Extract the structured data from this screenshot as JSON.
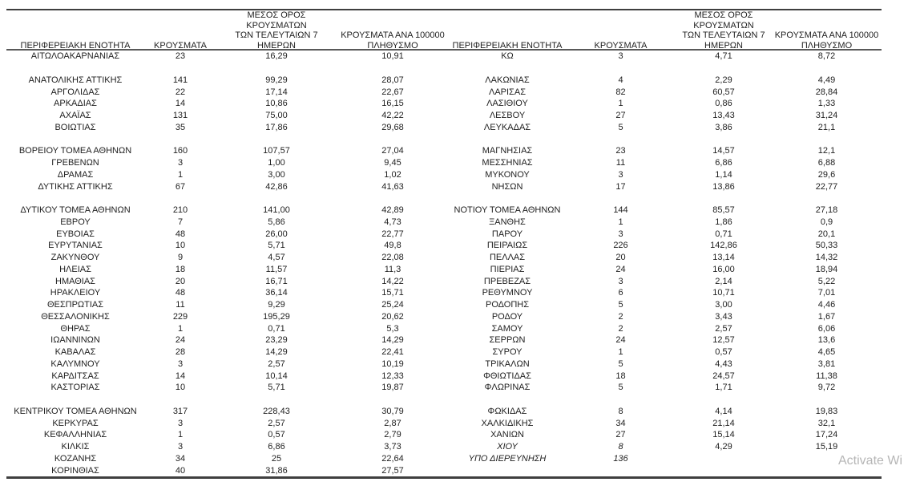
{
  "headers": {
    "region": "ΠΕΡΙΦΕΡΕΙΑΚΗ ΕΝΟΤΗΤΑ",
    "cases": "ΚΡΟΥΣΜΑΤΑ",
    "avg7": "ΜΕΣΟΣ ΟΡΟΣ ΚΡΟΥΣΜΑΤΩΝ\nΤΩΝ ΤΕΛΕΥΤΑΙΩΝ 7\nΗΜΕΡΩΝ",
    "per100k": "ΚΡΟΥΣΜΑΤΑ ΑΝΑ 100000\nΠΛΗΘΥΣΜΟ"
  },
  "colors": {
    "text": "#1f1f1f",
    "rule_dark": "#3f3f3f",
    "rule_mid": "#595959",
    "watermark": "#b6b6b6"
  },
  "watermark": "Activate Wi",
  "rows": [
    {
      "l": [
        "ΑΙΤΩΛΟΑΚΑΡΝΑΝΙΑΣ",
        "23",
        "16,29",
        "10,91"
      ],
      "r": [
        "ΚΩ",
        "3",
        "4,71",
        "8,72"
      ]
    },
    {
      "spacer": true
    },
    {
      "l": [
        "ΑΝΑΤΟΛΙΚΗΣ ΑΤΤΙΚΗΣ",
        "141",
        "99,29",
        "28,07"
      ],
      "r": [
        "ΛΑΚΩΝΙΑΣ",
        "4",
        "2,29",
        "4,49"
      ]
    },
    {
      "l": [
        "ΑΡΓΟΛΙΔΑΣ",
        "22",
        "17,14",
        "22,67"
      ],
      "r": [
        "ΛΑΡΙΣΑΣ",
        "82",
        "60,57",
        "28,84"
      ]
    },
    {
      "l": [
        "ΑΡΚΑΔΙΑΣ",
        "14",
        "10,86",
        "16,15"
      ],
      "r": [
        "ΛΑΣΙΘΙΟΥ",
        "1",
        "0,86",
        "1,33"
      ]
    },
    {
      "l": [
        "ΑΧΑΪΑΣ",
        "131",
        "75,00",
        "42,22"
      ],
      "r": [
        "ΛΕΣΒΟΥ",
        "27",
        "13,43",
        "31,24"
      ]
    },
    {
      "l": [
        "ΒΟΙΩΤΙΑΣ",
        "35",
        "17,86",
        "29,68"
      ],
      "r": [
        "ΛΕΥΚΑΔΑΣ",
        "5",
        "3,86",
        "21,1"
      ]
    },
    {
      "spacer": true
    },
    {
      "l": [
        "ΒΟΡΕΙΟΥ ΤΟΜΕΑ ΑΘΗΝΩΝ",
        "160",
        "107,57",
        "27,04"
      ],
      "r": [
        "ΜΑΓΝΗΣΙΑΣ",
        "23",
        "14,57",
        "12,1"
      ]
    },
    {
      "l": [
        "ΓΡΕΒΕΝΩΝ",
        "3",
        "1,00",
        "9,45"
      ],
      "r": [
        "ΜΕΣΣΗΝΙΑΣ",
        "11",
        "6,86",
        "6,88"
      ]
    },
    {
      "l": [
        "ΔΡΑΜΑΣ",
        "1",
        "3,00",
        "1,02"
      ],
      "r": [
        "ΜΥΚΟΝΟΥ",
        "3",
        "1,14",
        "29,6"
      ]
    },
    {
      "l": [
        "ΔΥΤΙΚΗΣ ΑΤΤΙΚΗΣ",
        "67",
        "42,86",
        "41,63"
      ],
      "r": [
        "ΝΗΣΩΝ",
        "17",
        "13,86",
        "22,77"
      ]
    },
    {
      "spacer": true
    },
    {
      "l": [
        "ΔΥΤΙΚΟΥ ΤΟΜΕΑ ΑΘΗΝΩΝ",
        "210",
        "141,00",
        "42,89"
      ],
      "r": [
        "ΝΟΤΙΟΥ ΤΟΜΕΑ ΑΘΗΝΩΝ",
        "144",
        "85,57",
        "27,18"
      ]
    },
    {
      "l": [
        "ΕΒΡΟΥ",
        "7",
        "5,86",
        "4,73"
      ],
      "r": [
        "ΞΑΝΘΗΣ",
        "1",
        "1,86",
        "0,9"
      ]
    },
    {
      "l": [
        "ΕΥΒΟΙΑΣ",
        "48",
        "26,00",
        "22,77"
      ],
      "r": [
        "ΠΑΡΟΥ",
        "3",
        "0,71",
        "20,1"
      ]
    },
    {
      "l": [
        "ΕΥΡΥΤΑΝΙΑΣ",
        "10",
        "5,71",
        "49,8"
      ],
      "r": [
        "ΠΕΙΡΑΙΩΣ",
        "226",
        "142,86",
        "50,33"
      ]
    },
    {
      "l": [
        "ΖΑΚΥΝΘΟΥ",
        "9",
        "4,57",
        "22,08"
      ],
      "r": [
        "ΠΕΛΛΑΣ",
        "20",
        "13,14",
        "14,32"
      ]
    },
    {
      "l": [
        "ΗΛΕΙΑΣ",
        "18",
        "11,57",
        "11,3"
      ],
      "r": [
        "ΠΙΕΡΙΑΣ",
        "24",
        "16,00",
        "18,94"
      ]
    },
    {
      "l": [
        "ΗΜΑΘΙΑΣ",
        "20",
        "16,71",
        "14,22"
      ],
      "r": [
        "ΠΡΕΒΕΖΑΣ",
        "3",
        "2,14",
        "5,22"
      ]
    },
    {
      "l": [
        "ΗΡΑΚΛΕΙΟΥ",
        "48",
        "36,14",
        "15,71"
      ],
      "r": [
        "ΡΕΘΥΜΝΟΥ",
        "6",
        "10,71",
        "7,01"
      ]
    },
    {
      "l": [
        "ΘΕΣΠΡΩΤΙΑΣ",
        "11",
        "9,29",
        "25,24"
      ],
      "r": [
        "ΡΟΔΟΠΗΣ",
        "5",
        "3,00",
        "4,46"
      ]
    },
    {
      "l": [
        "ΘΕΣΣΑΛΟΝΙΚΗΣ",
        "229",
        "195,29",
        "20,62"
      ],
      "r": [
        "ΡΟΔΟΥ",
        "2",
        "3,43",
        "1,67"
      ]
    },
    {
      "l": [
        "ΘΗΡΑΣ",
        "1",
        "0,71",
        "5,3"
      ],
      "r": [
        "ΣΑΜΟΥ",
        "2",
        "2,57",
        "6,06"
      ]
    },
    {
      "l": [
        "ΙΩΑΝΝΙΝΩΝ",
        "24",
        "23,29",
        "14,29"
      ],
      "r": [
        "ΣΕΡΡΩΝ",
        "24",
        "12,57",
        "13,6"
      ]
    },
    {
      "l": [
        "ΚΑΒΑΛΑΣ",
        "28",
        "14,29",
        "22,41"
      ],
      "r": [
        "ΣΥΡΟΥ",
        "1",
        "0,57",
        "4,65"
      ]
    },
    {
      "l": [
        "ΚΑΛΥΜΝΟΥ",
        "3",
        "2,57",
        "10,19"
      ],
      "r": [
        "ΤΡΙΚΑΛΩΝ",
        "5",
        "4,43",
        "3,81"
      ]
    },
    {
      "l": [
        "ΚΑΡΔΙΤΣΑΣ",
        "14",
        "10,14",
        "12,33"
      ],
      "r": [
        "ΦΘΙΩΤΙΔΑΣ",
        "18",
        "24,57",
        "11,38"
      ]
    },
    {
      "l": [
        "ΚΑΣΤΟΡΙΑΣ",
        "10",
        "5,71",
        "19,87"
      ],
      "r": [
        "ΦΛΩΡΙΝΑΣ",
        "5",
        "1,71",
        "9,72"
      ]
    },
    {
      "spacer": true
    },
    {
      "l": [
        "ΚΕΝΤΡΙΚΟΥ ΤΟΜΕΑ ΑΘΗΝΩΝ",
        "317",
        "228,43",
        "30,79"
      ],
      "r": [
        "ΦΩΚΙΔΑΣ",
        "8",
        "4,14",
        "19,83"
      ]
    },
    {
      "l": [
        "ΚΕΡΚΥΡΑΣ",
        "3",
        "2,57",
        "2,87"
      ],
      "r": [
        "ΧΑΛΚΙΔΙΚΗΣ",
        "34",
        "21,14",
        "32,1"
      ]
    },
    {
      "l": [
        "ΚΕΦΑΛΛΗΝΙΑΣ",
        "1",
        "0,57",
        "2,79"
      ],
      "r": [
        "ΧΑΝΙΩΝ",
        "27",
        "15,14",
        "17,24"
      ]
    },
    {
      "l": [
        "ΚΙΛΚΙΣ",
        "3",
        "6,86",
        "3,73"
      ],
      "r": [
        "ΧΙΟΥ",
        "8",
        "4,29",
        "15,19"
      ],
      "ri": [
        true,
        true,
        false,
        false
      ]
    },
    {
      "l": [
        "ΚΟΖΑΝΗΣ",
        "34",
        "25",
        "22,64"
      ],
      "r": [
        "ΥΠΟ ΔΙΕΡΕΥΝΗΣΗ",
        "136",
        "",
        ""
      ],
      "ri": [
        true,
        true,
        false,
        false
      ]
    },
    {
      "l": [
        "ΚΟΡΙΝΘΙΑΣ",
        "40",
        "31,86",
        "27,57"
      ],
      "r": [
        "",
        "",
        "",
        ""
      ]
    }
  ]
}
